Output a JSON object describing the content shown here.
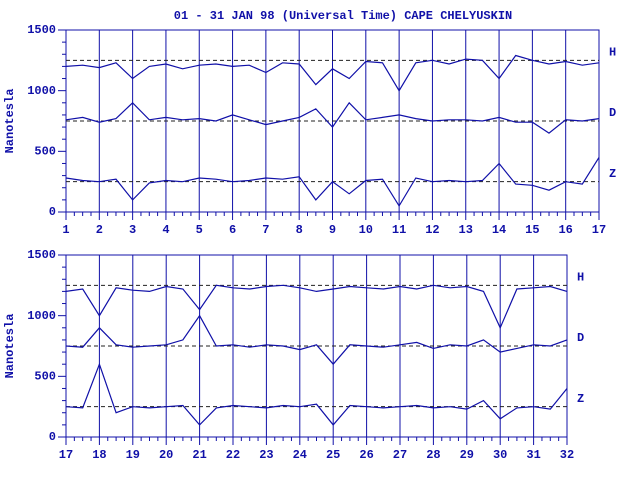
{
  "chart_data": [
    {
      "type": "line",
      "title": "01 - 31 JAN 98 (Universal Time) CAPE CHELYUSKIN",
      "ylabel": "Nanotesla",
      "x": [
        1,
        1.5,
        2,
        2.5,
        3,
        3.5,
        4,
        4.5,
        5,
        5.5,
        6,
        6.5,
        7,
        7.5,
        8,
        8.5,
        9,
        9.5,
        10,
        10.5,
        11,
        11.5,
        12,
        12.5,
        13,
        13.5,
        14,
        14.5,
        15,
        15.5,
        16,
        16.5,
        17
      ],
      "xlim": [
        1,
        17
      ],
      "ylim": [
        0,
        1500
      ],
      "xticks": [
        1,
        2,
        3,
        4,
        5,
        6,
        7,
        8,
        9,
        10,
        11,
        12,
        13,
        14,
        15,
        16,
        17
      ],
      "yticks": [
        0,
        500,
        1000,
        1500
      ],
      "grid": "x",
      "series": [
        {
          "name": "H",
          "color": "#1010a8",
          "baseline": 1250,
          "values": [
            1200,
            1210,
            1190,
            1230,
            1100,
            1200,
            1220,
            1180,
            1210,
            1220,
            1200,
            1210,
            1150,
            1230,
            1220,
            1050,
            1180,
            1100,
            1240,
            1230,
            1000,
            1230,
            1250,
            1220,
            1260,
            1250,
            1100,
            1290,
            1250,
            1220,
            1240,
            1210,
            1230
          ]
        },
        {
          "name": "D",
          "color": "#1010a8",
          "baseline": 750,
          "values": [
            760,
            780,
            740,
            770,
            900,
            760,
            780,
            760,
            770,
            750,
            800,
            760,
            720,
            750,
            780,
            850,
            700,
            900,
            760,
            780,
            800,
            770,
            750,
            760,
            760,
            750,
            780,
            740,
            740,
            650,
            760,
            750,
            770
          ]
        },
        {
          "name": "Z",
          "color": "#1010a8",
          "baseline": 250,
          "values": [
            280,
            260,
            250,
            270,
            100,
            240,
            260,
            250,
            280,
            270,
            250,
            260,
            280,
            270,
            290,
            100,
            250,
            150,
            260,
            270,
            50,
            280,
            250,
            260,
            250,
            260,
            400,
            230,
            220,
            180,
            250,
            230,
            450
          ]
        }
      ]
    },
    {
      "type": "line",
      "ylabel": "Nanotesla",
      "x": [
        17,
        17.5,
        18,
        18.5,
        19,
        19.5,
        20,
        20.5,
        21,
        21.5,
        22,
        22.5,
        23,
        23.5,
        24,
        24.5,
        25,
        25.5,
        26,
        26.5,
        27,
        27.5,
        28,
        28.5,
        29,
        29.5,
        30,
        30.5,
        31,
        31.5,
        32
      ],
      "xlim": [
        17,
        32
      ],
      "ylim": [
        0,
        1500
      ],
      "xticks": [
        17,
        18,
        19,
        20,
        21,
        22,
        23,
        24,
        25,
        26,
        27,
        28,
        29,
        30,
        31,
        32
      ],
      "yticks": [
        0,
        500,
        1000,
        1500
      ],
      "grid": "x",
      "series": [
        {
          "name": "H",
          "color": "#1010a8",
          "baseline": 1250,
          "values": [
            1200,
            1220,
            1000,
            1230,
            1210,
            1200,
            1240,
            1220,
            1050,
            1250,
            1230,
            1220,
            1240,
            1250,
            1230,
            1200,
            1220,
            1240,
            1230,
            1220,
            1240,
            1220,
            1250,
            1230,
            1240,
            1200,
            900,
            1220,
            1230,
            1240,
            1200
          ]
        },
        {
          "name": "D",
          "color": "#1010a8",
          "baseline": 750,
          "values": [
            750,
            740,
            900,
            760,
            740,
            750,
            760,
            800,
            1000,
            750,
            760,
            740,
            760,
            750,
            720,
            760,
            600,
            760,
            750,
            740,
            760,
            780,
            730,
            760,
            750,
            800,
            700,
            730,
            760,
            750,
            800
          ]
        },
        {
          "name": "Z",
          "color": "#1010a8",
          "baseline": 250,
          "values": [
            250,
            240,
            600,
            200,
            250,
            240,
            250,
            260,
            100,
            240,
            260,
            250,
            240,
            260,
            250,
            270,
            100,
            260,
            250,
            240,
            250,
            260,
            240,
            250,
            230,
            300,
            150,
            240,
            250,
            230,
            400
          ]
        }
      ]
    }
  ]
}
